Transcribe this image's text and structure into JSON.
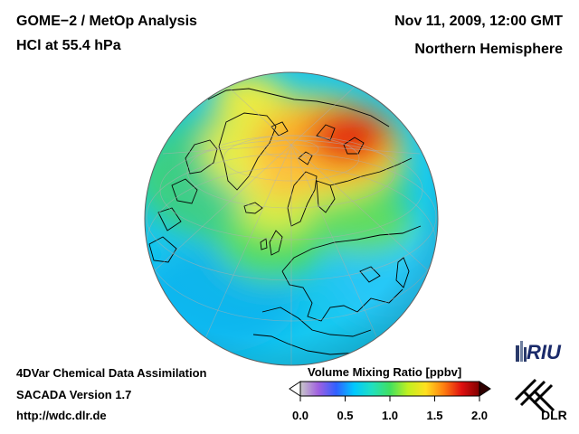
{
  "header": {
    "title_line1": "GOME−2 / MetOp Analysis",
    "title_line2": "HCl at 55.4 hPa",
    "date": "Nov 11, 2009, 12:00 GMT",
    "region": "Northern Hemisphere"
  },
  "footer": {
    "line1": "4DVar Chemical Data Assimilation",
    "line2": "SACADA Version 1.7",
    "url": "http://wdc.dlr.de"
  },
  "colorbar": {
    "title": "Volume Mixing Ratio [ppbv]",
    "min": 0.0,
    "max": 2.0,
    "ticks": [
      "0.0",
      "0.5",
      "1.0",
      "1.5",
      "2.0"
    ],
    "colors": [
      "#c8c8c8",
      "#a060e0",
      "#3060ff",
      "#00c8ff",
      "#20e0c0",
      "#40e060",
      "#c0f020",
      "#ffe020",
      "#ff8010",
      "#e01010",
      "#800000"
    ]
  },
  "logos": {
    "riu": "RIU",
    "dlr": "DLR"
  },
  "map": {
    "projection": "orthographic",
    "hemisphere": "Northern Hemisphere",
    "parameter": "HCl volume mixing ratio"
  }
}
